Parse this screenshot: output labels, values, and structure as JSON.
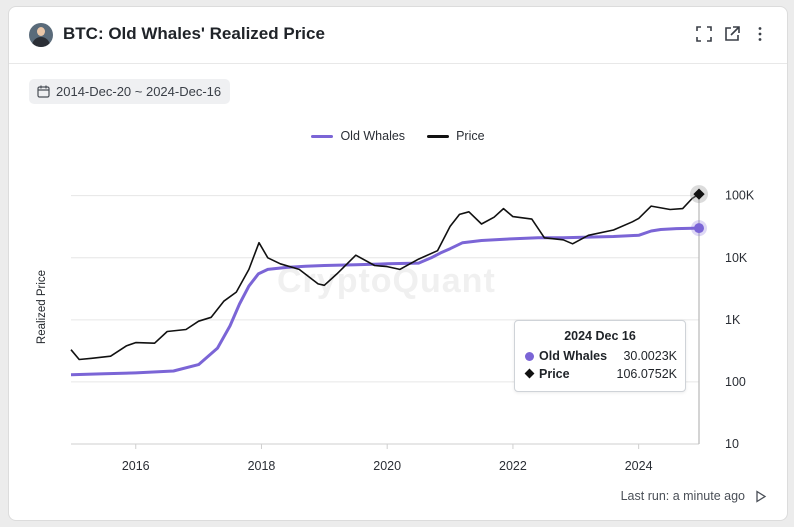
{
  "header": {
    "title": "BTC: Old Whales' Realized Price",
    "icons": [
      "avatar",
      "expand-icon",
      "external-link-icon",
      "more-icon"
    ]
  },
  "date_range": "2014-Dec-20 ~ 2024-Dec-16",
  "watermark": "CryptoQuant",
  "tooltip": {
    "date": "2024 Dec 16",
    "rows": [
      {
        "label": "Old Whales",
        "value": "30.0023K"
      },
      {
        "label": "Price",
        "value": "106.0752K"
      }
    ]
  },
  "footer": {
    "last_run": "Last run: a minute ago"
  },
  "colors": {
    "old_whales": "#7b65d6",
    "price": "#111111",
    "grid": "#e6e6e6"
  },
  "chart_data": {
    "type": "line",
    "title": "BTC: Old Whales' Realized Price",
    "ylabel": "Realized Price",
    "yscale": "log",
    "ylim": [
      10,
      200000
    ],
    "xlim": [
      2014.97,
      2024.96
    ],
    "x_ticks": [
      "2016",
      "2018",
      "2020",
      "2022",
      "2024"
    ],
    "y_ticks": [
      "100K",
      "10K",
      "1K",
      "100",
      "10"
    ],
    "legend": {
      "position": "top-center"
    },
    "grid": true,
    "series": [
      {
        "name": "Old Whales",
        "x": [
          2014.97,
          2015.5,
          2016.0,
          2016.6,
          2017.0,
          2017.3,
          2017.5,
          2017.65,
          2017.8,
          2017.95,
          2018.1,
          2018.4,
          2018.7,
          2019.0,
          2019.5,
          2020.0,
          2020.5,
          2020.7,
          2020.85,
          2021.0,
          2021.2,
          2021.5,
          2021.9,
          2022.4,
          2022.8,
          2023.2,
          2023.6,
          2024.0,
          2024.2,
          2024.35,
          2024.6,
          2024.96
        ],
        "y": [
          130,
          135,
          140,
          150,
          190,
          350,
          800,
          1800,
          3500,
          5500,
          6500,
          7000,
          7300,
          7500,
          7700,
          8000,
          8200,
          10000,
          12000,
          14000,
          17500,
          19000,
          20000,
          21000,
          21000,
          21500,
          22000,
          23000,
          27000,
          28500,
          29500,
          30002.3
        ]
      },
      {
        "name": "Price",
        "x": [
          2014.97,
          2015.1,
          2015.3,
          2015.6,
          2015.85,
          2016.0,
          2016.3,
          2016.5,
          2016.8,
          2017.0,
          2017.2,
          2017.4,
          2017.6,
          2017.8,
          2017.96,
          2018.1,
          2018.3,
          2018.6,
          2018.9,
          2019.0,
          2019.2,
          2019.5,
          2019.8,
          2020.0,
          2020.2,
          2020.5,
          2020.8,
          2021.0,
          2021.15,
          2021.3,
          2021.5,
          2021.7,
          2021.85,
          2022.0,
          2022.3,
          2022.5,
          2022.8,
          2022.95,
          2023.2,
          2023.6,
          2023.9,
          2024.0,
          2024.2,
          2024.5,
          2024.7,
          2024.85,
          2024.96
        ],
        "y": [
          330,
          230,
          240,
          260,
          380,
          430,
          420,
          650,
          700,
          950,
          1100,
          2000,
          2800,
          6500,
          17500,
          10000,
          8000,
          6500,
          3800,
          3600,
          5500,
          11000,
          7500,
          7200,
          6500,
          9500,
          13000,
          32000,
          50000,
          55000,
          35000,
          45000,
          62000,
          46000,
          42000,
          21000,
          19500,
          16800,
          23000,
          28000,
          38000,
          43000,
          68000,
          60000,
          62000,
          90000,
          106075.2
        ]
      }
    ]
  }
}
